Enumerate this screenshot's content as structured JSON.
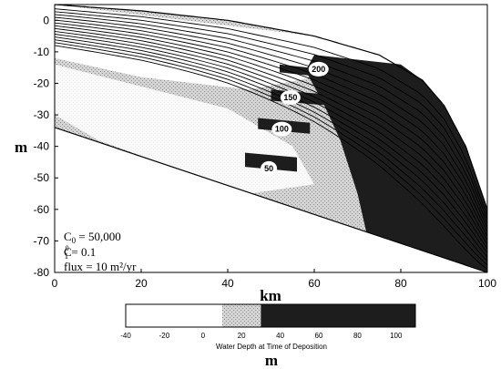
{
  "chart_data": {
    "type": "heatmap",
    "xlabel": "km",
    "ylabel": "m",
    "xlim": [
      0,
      100
    ],
    "ylim": [
      -80,
      5
    ],
    "x_ticks": [
      0,
      20,
      40,
      60,
      80,
      100
    ],
    "y_ticks": [
      0,
      -10,
      -20,
      -30,
      -40,
      -50,
      -60,
      -70,
      -80
    ],
    "grid": false,
    "params": {
      "c0": "C",
      "c0_sub": "0",
      "c0_val": " = 50,000",
      "c1": "C",
      "c1_sup": "0",
      "c1_sub": "1",
      "c1_val": " = 0.1",
      "flux": "flux = 10 m²/yr"
    },
    "time_labels": [
      {
        "text": "200",
        "x": 61,
        "y": -15.5
      },
      {
        "text": "150",
        "x": 54.5,
        "y": -24.5
      },
      {
        "text": "100",
        "x": 52.5,
        "y": -34.5
      },
      {
        "text": "50",
        "x": 49.5,
        "y": -47
      }
    ],
    "top_surface": [
      [
        0,
        5
      ],
      [
        20,
        3
      ],
      [
        40,
        0
      ],
      [
        60,
        -5
      ],
      [
        75,
        -11
      ],
      [
        85,
        -19
      ],
      [
        90,
        -27
      ],
      [
        95,
        -40
      ],
      [
        100,
        -60
      ]
    ],
    "base_surface": [
      [
        0,
        -34
      ],
      [
        100,
        -80
      ]
    ],
    "colorbar": {
      "label": "Water Depth at Time of Deposition",
      "unit": "m",
      "range": [
        -40,
        110
      ],
      "ticks": [
        -40,
        -20,
        0,
        20,
        40,
        60,
        80,
        100
      ],
      "classes": [
        {
          "from": -40,
          "to": 10,
          "color": "#ffffff"
        },
        {
          "from": 10,
          "to": 30,
          "color": "#c9c9c9"
        },
        {
          "from": 30,
          "to": 110,
          "color": "#1d1d1d"
        }
      ]
    }
  }
}
